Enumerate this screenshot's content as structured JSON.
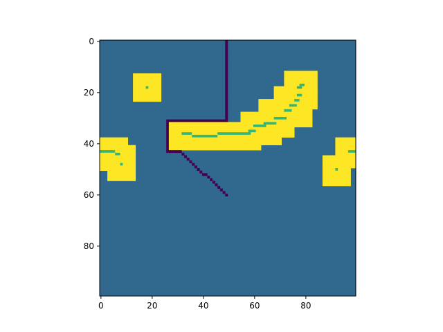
{
  "chart_data": {
    "type": "heatmap",
    "title": "",
    "xlabel": "",
    "ylabel": "",
    "xlim": [
      -0.5,
      99.5
    ],
    "ylim": [
      99.5,
      -0.5
    ],
    "y_axis_inverted": true,
    "grid": false,
    "legend": "none",
    "x_ticks": [
      0,
      20,
      40,
      60,
      80
    ],
    "y_ticks": [
      0,
      20,
      40,
      60,
      80
    ],
    "x_tick_labels": [
      "0",
      "20",
      "40",
      "60",
      "80"
    ],
    "y_tick_labels": [
      "0",
      "20",
      "40",
      "60",
      "80"
    ],
    "colormap": "viridis",
    "colors": {
      "background": "#31688e",
      "occupied": "#fde725",
      "inner": "#35b779",
      "path": "#440154"
    },
    "background_value": "background",
    "regions": [
      {
        "value": "occupied",
        "row": [
          13,
          23
        ],
        "col": [
          13,
          23
        ]
      },
      {
        "value": "occupied",
        "row": [
          38,
          41
        ],
        "col": [
          0,
          10
        ]
      },
      {
        "value": "occupied",
        "row": [
          41,
          54
        ],
        "col": [
          3,
          13
        ]
      },
      {
        "value": "occupied",
        "row": [
          38,
          50
        ],
        "col": [
          0,
          3
        ]
      },
      {
        "value": "occupied",
        "row": [
          32,
          42
        ],
        "col": [
          27,
          62
        ]
      },
      {
        "value": "occupied",
        "row": [
          28,
          40
        ],
        "col": [
          55,
          70
        ]
      },
      {
        "value": "occupied",
        "row": [
          23,
          37
        ],
        "col": [
          62,
          75
        ]
      },
      {
        "value": "occupied",
        "row": [
          18,
          33
        ],
        "col": [
          68,
          82
        ]
      },
      {
        "value": "occupied",
        "row": [
          12,
          26
        ],
        "col": [
          72,
          84
        ]
      },
      {
        "value": "occupied",
        "row": [
          38,
          49
        ],
        "col": [
          92,
          99
        ]
      },
      {
        "value": "occupied",
        "row": [
          45,
          56
        ],
        "col": [
          87,
          97
        ]
      },
      {
        "value": "inner",
        "row": [
          18,
          18
        ],
        "col": [
          18,
          18
        ]
      },
      {
        "value": "inner",
        "row": [
          43,
          43
        ],
        "col": [
          0,
          5
        ]
      },
      {
        "value": "inner",
        "row": [
          44,
          44
        ],
        "col": [
          6,
          7
        ]
      },
      {
        "value": "inner",
        "row": [
          48,
          48
        ],
        "col": [
          8,
          8
        ]
      },
      {
        "value": "inner",
        "row": [
          36,
          36
        ],
        "col": [
          32,
          35
        ]
      },
      {
        "value": "inner",
        "row": [
          37,
          37
        ],
        "col": [
          36,
          45
        ]
      },
      {
        "value": "inner",
        "row": [
          36,
          36
        ],
        "col": [
          46,
          58
        ]
      },
      {
        "value": "inner",
        "row": [
          35,
          35
        ],
        "col": [
          58,
          60
        ]
      },
      {
        "value": "inner",
        "row": [
          33,
          33
        ],
        "col": [
          60,
          64
        ]
      },
      {
        "value": "inner",
        "row": [
          32,
          32
        ],
        "col": [
          64,
          68
        ]
      },
      {
        "value": "inner",
        "row": [
          30,
          30
        ],
        "col": [
          68,
          72
        ]
      },
      {
        "value": "inner",
        "row": [
          27,
          27
        ],
        "col": [
          72,
          74
        ]
      },
      {
        "value": "inner",
        "row": [
          25,
          25
        ],
        "col": [
          74,
          76
        ]
      },
      {
        "value": "inner",
        "row": [
          23,
          23
        ],
        "col": [
          76,
          77
        ]
      },
      {
        "value": "inner",
        "row": [
          21,
          21
        ],
        "col": [
          77,
          78
        ]
      },
      {
        "value": "inner",
        "row": [
          18,
          18
        ],
        "col": [
          77,
          78
        ]
      },
      {
        "value": "inner",
        "row": [
          17,
          17
        ],
        "col": [
          78,
          79
        ]
      },
      {
        "value": "inner",
        "row": [
          43,
          43
        ],
        "col": [
          97,
          99
        ]
      },
      {
        "value": "inner",
        "row": [
          50,
          50
        ],
        "col": [
          92,
          92
        ]
      }
    ],
    "path_segments": [
      {
        "value": "path",
        "row": [
          0,
          31
        ],
        "col": [
          49,
          49
        ]
      },
      {
        "value": "path",
        "row": [
          31,
          31
        ],
        "col": [
          26,
          49
        ]
      },
      {
        "value": "path",
        "row": [
          31,
          43
        ],
        "col": [
          26,
          26
        ]
      },
      {
        "value": "path",
        "row": [
          43,
          43
        ],
        "col": [
          26,
          31
        ]
      }
    ],
    "path_diagonal": {
      "value": "path",
      "from": [
        43,
        31
      ],
      "to": [
        60,
        49
      ]
    }
  }
}
